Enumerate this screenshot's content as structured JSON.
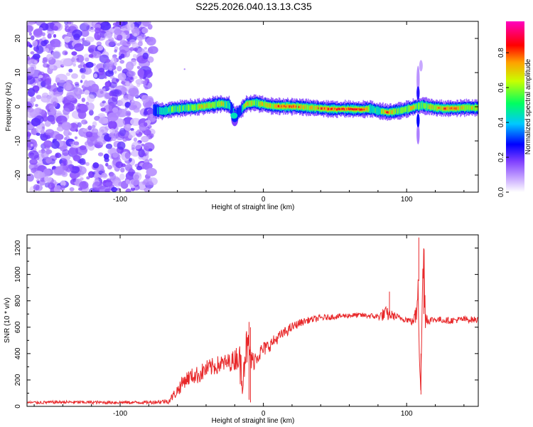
{
  "title": "S225.2026.040.13.13.C35",
  "chart_data": [
    {
      "type": "heatmap",
      "name": "spectrogram",
      "xlabel": "Height of straight line (km)",
      "ylabel": "Frequency (Hz)",
      "xlim": [
        -165,
        150
      ],
      "ylim": [
        -25,
        25
      ],
      "xticks": [
        -100,
        0,
        100
      ],
      "yticks": [
        -20,
        -10,
        0,
        10,
        20
      ],
      "noise_region_x": [
        -165,
        -77
      ],
      "signal_start_x": -77,
      "colorbar": {
        "label": "Normalized spectral amplitude",
        "range": [
          0,
          1
        ],
        "ticks": [
          "0.0",
          "0.2",
          "0.4",
          "0.6",
          "0.8"
        ],
        "colors": [
          "#ffffff",
          "#a070ff",
          "#0000ff",
          "#00ffff",
          "#00ff00",
          "#ffff00",
          "#ff0000",
          "#ff00ff"
        ]
      },
      "ridge": [
        {
          "x": -77,
          "y": -1.0,
          "a": 0.35
        },
        {
          "x": -70,
          "y": -1.2,
          "a": 0.45
        },
        {
          "x": -62,
          "y": -0.6,
          "a": 0.6
        },
        {
          "x": -55,
          "y": -0.4,
          "a": 0.55
        },
        {
          "x": -48,
          "y": -0.2,
          "a": 0.6
        },
        {
          "x": -40,
          "y": 0.3,
          "a": 0.75
        },
        {
          "x": -34,
          "y": 0.6,
          "a": 0.6
        },
        {
          "x": -29,
          "y": 0.9,
          "a": 0.7
        },
        {
          "x": -24,
          "y": 0.5,
          "a": 0.45
        },
        {
          "x": -20,
          "y": -2.5,
          "a": 0.4
        },
        {
          "x": -16,
          "y": -1.0,
          "a": 0.35
        },
        {
          "x": -12,
          "y": 0.9,
          "a": 0.8
        },
        {
          "x": -6,
          "y": 1.1,
          "a": 0.65
        },
        {
          "x": 0,
          "y": 0.7,
          "a": 0.75
        },
        {
          "x": 6,
          "y": 0.2,
          "a": 0.7
        },
        {
          "x": 12,
          "y": 0.1,
          "a": 0.9
        },
        {
          "x": 20,
          "y": 0.1,
          "a": 0.85
        },
        {
          "x": 28,
          "y": -0.1,
          "a": 0.7
        },
        {
          "x": 36,
          "y": -0.4,
          "a": 0.75
        },
        {
          "x": 44,
          "y": -0.6,
          "a": 0.9
        },
        {
          "x": 52,
          "y": -0.7,
          "a": 0.92
        },
        {
          "x": 60,
          "y": -0.7,
          "a": 0.95
        },
        {
          "x": 68,
          "y": -0.8,
          "a": 0.95
        },
        {
          "x": 74,
          "y": -0.6,
          "a": 0.6
        },
        {
          "x": 80,
          "y": -1.2,
          "a": 0.55
        },
        {
          "x": 87,
          "y": -1.6,
          "a": 0.9
        },
        {
          "x": 93,
          "y": -1.3,
          "a": 0.6
        },
        {
          "x": 99,
          "y": -0.8,
          "a": 0.65
        },
        {
          "x": 104,
          "y": -0.2,
          "a": 0.7
        },
        {
          "x": 110,
          "y": 0.4,
          "a": 0.55
        },
        {
          "x": 118,
          "y": -0.2,
          "a": 0.7
        },
        {
          "x": 126,
          "y": -0.5,
          "a": 0.85
        },
        {
          "x": 134,
          "y": -0.4,
          "a": 0.8
        },
        {
          "x": 142,
          "y": -0.3,
          "a": 0.7
        },
        {
          "x": 150,
          "y": -0.2,
          "a": 0.65
        }
      ]
    },
    {
      "type": "line",
      "name": "snr",
      "xlabel": "Height of straight line (km)",
      "ylabel": "SNR (10 * v/v)",
      "xlim": [
        -165,
        150
      ],
      "ylim": [
        0,
        1300
      ],
      "xticks": [
        -100,
        0,
        100
      ],
      "yticks": [
        0,
        200,
        400,
        600,
        800,
        1000,
        1200
      ],
      "series": [
        {
          "name": "SNR",
          "color": "#e8282a",
          "x": [
            -165,
            -140,
            -110,
            -80,
            -66,
            -60,
            -55,
            -50,
            -45,
            -40,
            -35,
            -30,
            -25,
            -20,
            -18,
            -15,
            -12,
            -10,
            -8,
            -5,
            0,
            5,
            10,
            15,
            20,
            25,
            30,
            35,
            40,
            50,
            60,
            70,
            80,
            85,
            90,
            95,
            100,
            104,
            107,
            108,
            109,
            110,
            111,
            112,
            113,
            115,
            120,
            130,
            140,
            150
          ],
          "values": [
            28,
            32,
            30,
            30,
            40,
            120,
            200,
            230,
            240,
            280,
            300,
            320,
            330,
            350,
            400,
            250,
            450,
            420,
            330,
            380,
            430,
            470,
            520,
            560,
            600,
            630,
            650,
            660,
            670,
            680,
            690,
            690,
            680,
            700,
            690,
            670,
            660,
            640,
            700,
            1050,
            400,
            150,
            900,
            1150,
            700,
            650,
            660,
            650,
            660,
            655
          ],
          "noise": [
            12,
            12,
            12,
            12,
            20,
            50,
            60,
            60,
            70,
            70,
            70,
            70,
            70,
            80,
            120,
            180,
            150,
            140,
            90,
            70,
            60,
            50,
            45,
            40,
            35,
            30,
            25,
            25,
            25,
            20,
            20,
            20,
            25,
            60,
            35,
            25,
            25,
            30,
            80,
            250,
            200,
            120,
            200,
            250,
            120,
            30,
            25,
            25,
            25,
            25
          ]
        }
      ]
    }
  ]
}
